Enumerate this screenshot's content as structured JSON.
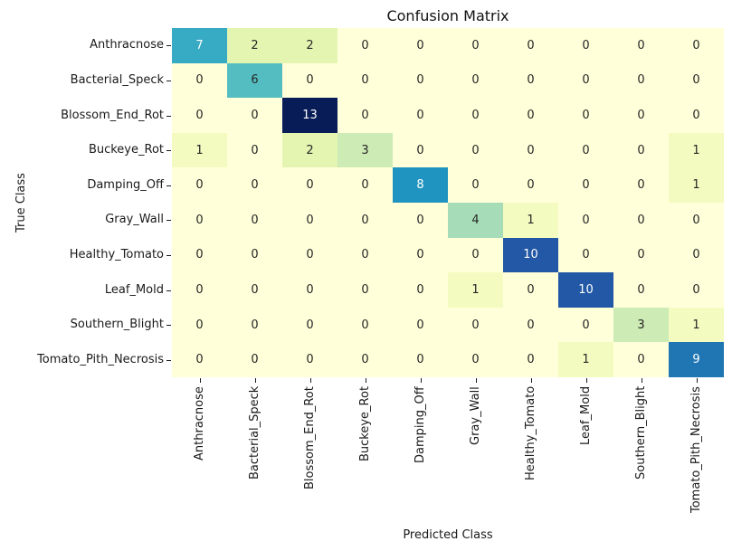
{
  "chart_data": {
    "type": "heatmap",
    "title": "Confusion Matrix",
    "xlabel": "Predicted Class",
    "ylabel": "True Class",
    "categories": [
      "Anthracnose",
      "Bacterial_Speck",
      "Blossom_End_Rot",
      "Buckeye_Rot",
      "Damping_Off",
      "Gray_Wall",
      "Healthy_Tomato",
      "Leaf_Mold",
      "Southern_Blight",
      "Tomato_Pith_Necrosis"
    ],
    "matrix": [
      [
        7,
        2,
        2,
        0,
        0,
        0,
        0,
        0,
        0,
        0
      ],
      [
        0,
        6,
        0,
        0,
        0,
        0,
        0,
        0,
        0,
        0
      ],
      [
        0,
        0,
        13,
        0,
        0,
        0,
        0,
        0,
        0,
        0
      ],
      [
        1,
        0,
        2,
        3,
        0,
        0,
        0,
        0,
        0,
        1
      ],
      [
        0,
        0,
        0,
        0,
        8,
        0,
        0,
        0,
        0,
        1
      ],
      [
        0,
        0,
        0,
        0,
        0,
        4,
        1,
        0,
        0,
        0
      ],
      [
        0,
        0,
        0,
        0,
        0,
        0,
        10,
        0,
        0,
        0
      ],
      [
        0,
        0,
        0,
        0,
        0,
        1,
        0,
        10,
        0,
        0
      ],
      [
        0,
        0,
        0,
        0,
        0,
        0,
        0,
        0,
        3,
        1
      ],
      [
        0,
        0,
        0,
        0,
        0,
        0,
        0,
        1,
        0,
        9
      ]
    ],
    "vmin": 0,
    "vmax": 13,
    "colormap": "YlGnBu",
    "value_colors": {
      "0": "#ffffd9",
      "1": "#f4fbc0",
      "2": "#e4f5b2",
      "3": "#cdebb4",
      "4": "#a6dcb7",
      "6": "#54bdc1",
      "7": "#36abc3",
      "8": "#2094c0",
      "9": "#2076b3",
      "10": "#2258a5",
      "13": "#081d58"
    },
    "annot_dark_color": "#262626",
    "annot_light_color": "#ffffff",
    "light_text_min": 7
  }
}
